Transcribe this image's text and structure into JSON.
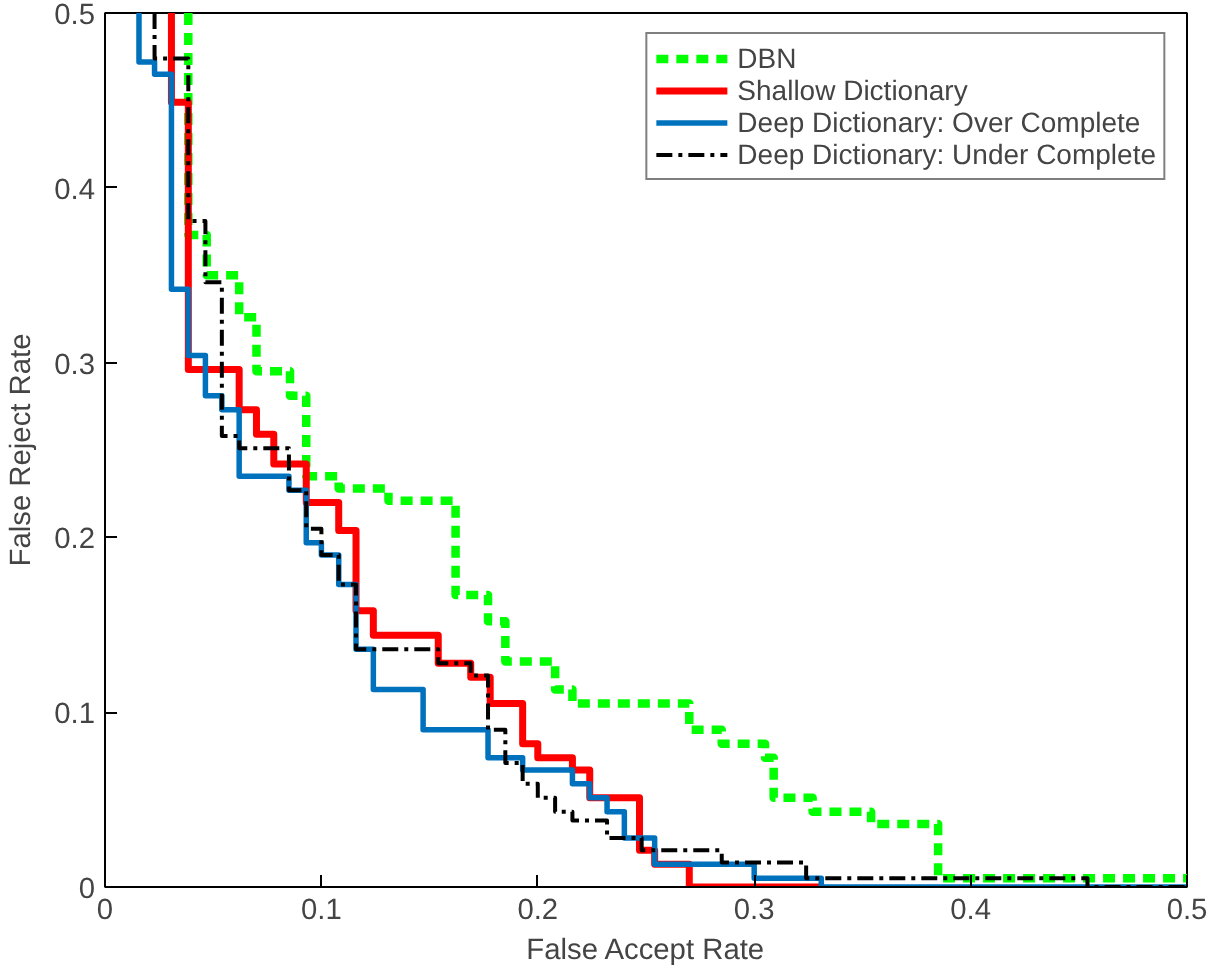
{
  "chart_data": {
    "type": "step",
    "xlabel": "False Accept Rate",
    "ylabel": "False Reject Rate",
    "xlim": [
      0,
      0.5
    ],
    "ylim": [
      0,
      0.5
    ],
    "xticks": [
      0,
      0.1,
      0.2,
      0.3,
      0.4,
      0.5
    ],
    "yticks": [
      0,
      0.1,
      0.2,
      0.3,
      0.4,
      0.5
    ],
    "grid": false,
    "legend": "top right",
    "series": [
      {
        "name": "DBN",
        "color": "#00ff00",
        "line_style": "dashed",
        "x": [
          0.0385,
          0.0385,
          0.047,
          0.062,
          0.07,
          0.0855,
          0.093,
          0.108,
          0.131,
          0.162,
          0.177,
          0.185,
          0.208,
          0.216,
          0.27,
          0.285,
          0.305,
          0.309,
          0.327,
          0.354,
          0.385,
          0.5
        ],
        "values": [
          0.5,
          0.373,
          0.35,
          0.326,
          0.295,
          0.281,
          0.235,
          0.228,
          0.221,
          0.167,
          0.152,
          0.129,
          0.113,
          0.105,
          0.09,
          0.082,
          0.074,
          0.051,
          0.043,
          0.036,
          0.005,
          0.005
        ]
      },
      {
        "name": "Shallow Dictionary",
        "color": "#ff0000",
        "line_style": "solid",
        "x": [
          0.0307,
          0.0307,
          0.0385,
          0.062,
          0.07,
          0.078,
          0.093,
          0.108,
          0.116,
          0.124,
          0.154,
          0.169,
          0.178,
          0.193,
          0.2,
          0.216,
          0.224,
          0.247,
          0.254,
          0.27,
          0.33
        ],
        "values": [
          0.5,
          0.449,
          0.296,
          0.273,
          0.259,
          0.242,
          0.22,
          0.204,
          0.158,
          0.144,
          0.128,
          0.12,
          0.105,
          0.082,
          0.074,
          0.067,
          0.051,
          0.021,
          0.013,
          0,
          0
        ]
      },
      {
        "name": "Deep Dictionary: Over Complete",
        "color": "#0072bd",
        "line_style": "solid",
        "x": [
          0.0157,
          0.0157,
          0.0229,
          0.0307,
          0.0385,
          0.0464,
          0.054,
          0.062,
          0.085,
          0.093,
          0.1,
          0.108,
          0.116,
          0.124,
          0.147,
          0.177,
          0.193,
          0.216,
          0.224,
          0.232,
          0.24,
          0.254,
          0.3,
          0.331,
          0.5
        ],
        "values": [
          0.5,
          0.472,
          0.465,
          0.342,
          0.304,
          0.281,
          0.273,
          0.235,
          0.227,
          0.197,
          0.19,
          0.173,
          0.136,
          0.113,
          0.09,
          0.074,
          0.067,
          0.059,
          0.051,
          0.043,
          0.028,
          0.013,
          0.005,
          0,
          0
        ]
      },
      {
        "name": "Deep Dictionary: Under Complete",
        "color": "#000000",
        "line_style": "dashdot",
        "x": [
          0.0229,
          0.0229,
          0.0385,
          0.0464,
          0.054,
          0.062,
          0.085,
          0.093,
          0.1,
          0.108,
          0.116,
          0.154,
          0.169,
          0.177,
          0.185,
          0.193,
          0.2,
          0.208,
          0.216,
          0.232,
          0.248,
          0.285,
          0.324,
          0.454,
          0.5
        ],
        "values": [
          0.5,
          0.474,
          0.381,
          0.346,
          0.258,
          0.251,
          0.227,
          0.205,
          0.19,
          0.173,
          0.136,
          0.128,
          0.121,
          0.09,
          0.071,
          0.059,
          0.051,
          0.043,
          0.038,
          0.028,
          0.021,
          0.014,
          0.005,
          0,
          0
        ]
      }
    ]
  }
}
